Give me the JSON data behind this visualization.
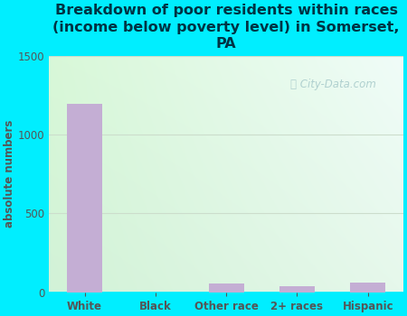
{
  "categories": [
    "White",
    "Black",
    "Other race",
    "2+ races",
    "Hispanic"
  ],
  "values": [
    1193,
    0,
    55,
    40,
    60
  ],
  "bar_color": "#c4aed4",
  "title": "Breakdown of poor residents within races\n(income below poverty level) in Somerset,\nPA",
  "ylabel": "absolute numbers",
  "ylim": [
    0,
    1500
  ],
  "yticks": [
    0,
    500,
    1000,
    1500
  ],
  "fig_bg": "#00eeff",
  "plot_bg_tl": "#d8f0d8",
  "plot_bg_tr": "#f0f8f8",
  "plot_bg_br": "#e8f5e8",
  "title_color": "#003344",
  "title_fontsize": 11.5,
  "axis_label_color": "#555555",
  "axis_label_fontsize": 8.5,
  "tick_fontsize": 8.5,
  "tick_color": "#555555",
  "watermark_color": "#aacccc",
  "grid_color": "#ccddcc"
}
